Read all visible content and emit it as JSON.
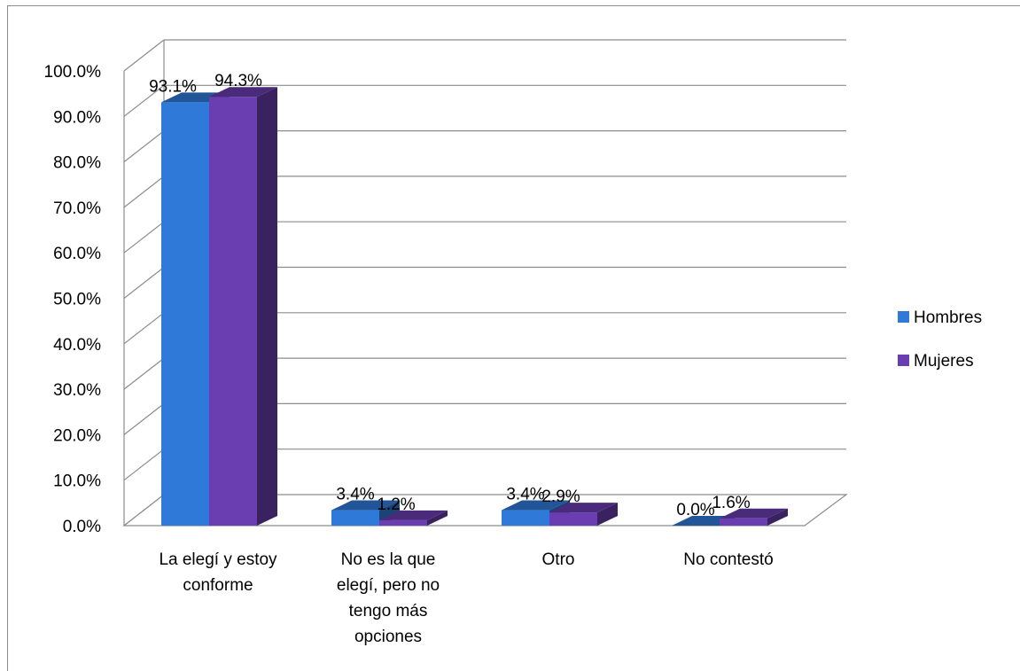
{
  "chart_data": {
    "type": "bar",
    "title": "",
    "xlabel": "",
    "ylabel": "",
    "ylim": [
      0,
      100
    ],
    "y_ticks": [
      "0.0%",
      "10.0%",
      "20.0%",
      "30.0%",
      "40.0%",
      "50.0%",
      "60.0%",
      "70.0%",
      "80.0%",
      "90.0%",
      "100.0%"
    ],
    "categories": [
      [
        "La elegí y estoy",
        "conforme"
      ],
      [
        "No es la que",
        "elegí, pero no",
        "tengo más",
        "opciones"
      ],
      [
        "Otro"
      ],
      [
        "No contestó"
      ]
    ],
    "series": [
      {
        "name": "Hombres",
        "values": [
          93.1,
          3.4,
          3.4,
          0.0
        ],
        "labels": [
          "93.1%",
          "3.4%",
          "3.4%",
          "0.0%"
        ],
        "color": "#2f7ad8"
      },
      {
        "name": "Mujeres",
        "values": [
          94.3,
          1.2,
          2.9,
          1.6
        ],
        "labels": [
          "94.3%",
          "1.2%",
          "2.9%",
          "1.6%"
        ],
        "color": "#6a3db0"
      }
    ],
    "grid": true,
    "legend": "right",
    "style": "3d-clustered-column"
  }
}
